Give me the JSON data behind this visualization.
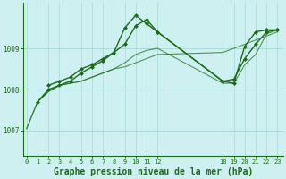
{
  "background_color": "#cff0f0",
  "grid_color": "#aad8d8",
  "line_color": "#1a6b1a",
  "title": "Graphe pression niveau de la mer (hPa)",
  "yticks": [
    1007,
    1008,
    1009
  ],
  "ylim": [
    1006.4,
    1010.1
  ],
  "xticks": [
    0,
    1,
    2,
    3,
    4,
    5,
    6,
    7,
    8,
    9,
    10,
    11,
    12,
    18,
    19,
    20,
    21,
    22,
    23
  ],
  "xlim": [
    -0.3,
    23.5
  ],
  "s1_x": [
    0,
    1,
    2,
    3,
    4,
    5,
    6,
    7,
    8,
    9,
    10,
    11,
    12,
    18,
    19,
    20,
    21,
    22,
    23
  ],
  "s1_y": [
    1007.05,
    1007.7,
    1007.95,
    1008.1,
    1008.15,
    1008.2,
    1008.3,
    1008.4,
    1008.5,
    1008.55,
    1008.65,
    1008.75,
    1008.85,
    1008.9,
    1009.0,
    1009.1,
    1009.2,
    1009.3,
    1009.4
  ],
  "s2_x": [
    0,
    1,
    2,
    3,
    4,
    5,
    6,
    7,
    8,
    9,
    10,
    11,
    12,
    18,
    19,
    20,
    21,
    22,
    23
  ],
  "s2_y": [
    1007.05,
    1007.7,
    1007.95,
    1008.1,
    1008.15,
    1008.2,
    1008.3,
    1008.4,
    1008.5,
    1008.65,
    1008.85,
    1008.95,
    1009.0,
    1008.15,
    1008.15,
    1008.6,
    1008.85,
    1009.35,
    1009.45
  ],
  "s3_x": [
    2,
    3,
    4,
    5,
    6,
    7,
    8,
    9,
    10,
    11,
    12,
    18,
    19,
    20,
    21,
    22,
    23
  ],
  "s3_y": [
    1008.1,
    1008.2,
    1008.3,
    1008.5,
    1008.6,
    1008.75,
    1008.9,
    1009.1,
    1009.55,
    1009.7,
    1009.4,
    1008.2,
    1008.25,
    1008.75,
    1009.1,
    1009.4,
    1009.45
  ],
  "s4_x": [
    1,
    2,
    3,
    4,
    5,
    6,
    7,
    8,
    9,
    10,
    11,
    12,
    18,
    19,
    20,
    21,
    22,
    23
  ],
  "s4_y": [
    1007.7,
    1008.0,
    1008.1,
    1008.2,
    1008.4,
    1008.55,
    1008.7,
    1008.9,
    1009.5,
    1009.8,
    1009.6,
    1009.4,
    1008.2,
    1008.15,
    1009.05,
    1009.4,
    1009.45,
    1009.45
  ]
}
